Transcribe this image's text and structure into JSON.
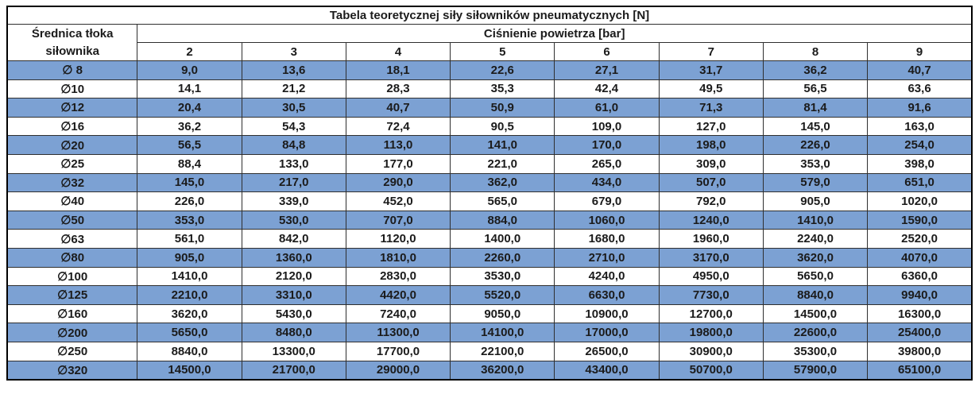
{
  "title": "Tabela teoretycznej siły siłowników pneumatycznych [N]",
  "header": {
    "diameter_label_line1": "Średnica tłoka",
    "diameter_label_line2": "siłownika",
    "pressure_label": "Ciśnienie powietrza [bar]",
    "pressures": [
      "2",
      "3",
      "4",
      "5",
      "6",
      "7",
      "8",
      "9"
    ]
  },
  "rows": [
    {
      "diameter": "∅ 8",
      "highlight": true,
      "values": [
        "9,0",
        "13,6",
        "18,1",
        "22,6",
        "27,1",
        "31,7",
        "36,2",
        "40,7"
      ]
    },
    {
      "diameter": "∅10",
      "highlight": false,
      "values": [
        "14,1",
        "21,2",
        "28,3",
        "35,3",
        "42,4",
        "49,5",
        "56,5",
        "63,6"
      ]
    },
    {
      "diameter": "∅12",
      "highlight": true,
      "values": [
        "20,4",
        "30,5",
        "40,7",
        "50,9",
        "61,0",
        "71,3",
        "81,4",
        "91,6"
      ]
    },
    {
      "diameter": "∅16",
      "highlight": false,
      "values": [
        "36,2",
        "54,3",
        "72,4",
        "90,5",
        "109,0",
        "127,0",
        "145,0",
        "163,0"
      ]
    },
    {
      "diameter": "∅20",
      "highlight": true,
      "values": [
        "56,5",
        "84,8",
        "113,0",
        "141,0",
        "170,0",
        "198,0",
        "226,0",
        "254,0"
      ]
    },
    {
      "diameter": "∅25",
      "highlight": false,
      "values": [
        "88,4",
        "133,0",
        "177,0",
        "221,0",
        "265,0",
        "309,0",
        "353,0",
        "398,0"
      ]
    },
    {
      "diameter": "∅32",
      "highlight": true,
      "values": [
        "145,0",
        "217,0",
        "290,0",
        "362,0",
        "434,0",
        "507,0",
        "579,0",
        "651,0"
      ]
    },
    {
      "diameter": "∅40",
      "highlight": false,
      "values": [
        "226,0",
        "339,0",
        "452,0",
        "565,0",
        "679,0",
        "792,0",
        "905,0",
        "1020,0"
      ]
    },
    {
      "diameter": "∅50",
      "highlight": true,
      "values": [
        "353,0",
        "530,0",
        "707,0",
        "884,0",
        "1060,0",
        "1240,0",
        "1410,0",
        "1590,0"
      ]
    },
    {
      "diameter": "∅63",
      "highlight": false,
      "values": [
        "561,0",
        "842,0",
        "1120,0",
        "1400,0",
        "1680,0",
        "1960,0",
        "2240,0",
        "2520,0"
      ]
    },
    {
      "diameter": "∅80",
      "highlight": true,
      "values": [
        "905,0",
        "1360,0",
        "1810,0",
        "2260,0",
        "2710,0",
        "3170,0",
        "3620,0",
        "4070,0"
      ]
    },
    {
      "diameter": "∅100",
      "highlight": false,
      "values": [
        "1410,0",
        "2120,0",
        "2830,0",
        "3530,0",
        "4240,0",
        "4950,0",
        "5650,0",
        "6360,0"
      ]
    },
    {
      "diameter": "∅125",
      "highlight": true,
      "values": [
        "2210,0",
        "3310,0",
        "4420,0",
        "5520,0",
        "6630,0",
        "7730,0",
        "8840,0",
        "9940,0"
      ]
    },
    {
      "diameter": "∅160",
      "highlight": false,
      "values": [
        "3620,0",
        "5430,0",
        "7240,0",
        "9050,0",
        "10900,0",
        "12700,0",
        "14500,0",
        "16300,0"
      ]
    },
    {
      "diameter": "∅200",
      "highlight": true,
      "values": [
        "5650,0",
        "8480,0",
        "11300,0",
        "14100,0",
        "17000,0",
        "19800,0",
        "22600,0",
        "25400,0"
      ]
    },
    {
      "diameter": "∅250",
      "highlight": false,
      "values": [
        "8840,0",
        "13300,0",
        "17700,0",
        "22100,0",
        "26500,0",
        "30900,0",
        "35300,0",
        "39800,0"
      ]
    },
    {
      "diameter": "∅320",
      "highlight": true,
      "values": [
        "14500,0",
        "21700,0",
        "29000,0",
        "36200,0",
        "43400,0",
        "50700,0",
        "57900,0",
        "65100,0"
      ]
    }
  ],
  "colors": {
    "row_highlight": "#7ca1d3",
    "border": "#2f2f2f",
    "text": "#1b1b1b"
  }
}
